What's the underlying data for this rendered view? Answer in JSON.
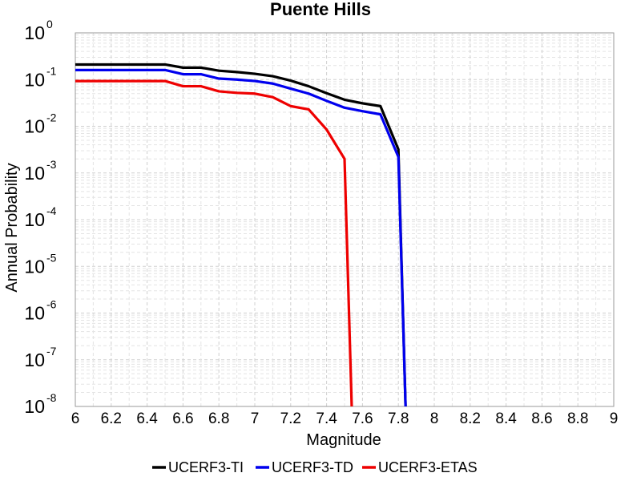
{
  "chart_data": {
    "type": "line",
    "title": "Puente Hills",
    "xlabel": "Magnitude",
    "ylabel": "Annual Probability",
    "xlim": [
      6,
      9
    ],
    "ylim": [
      1e-08,
      1
    ],
    "yscale": "log",
    "grid": true,
    "legend_position": "bottom-center",
    "x_ticks": [
      "6",
      "6.2",
      "6.4",
      "6.6",
      "6.8",
      "7",
      "7.2",
      "7.4",
      "7.6",
      "7.8",
      "8",
      "8.2",
      "8.4",
      "8.6",
      "8.8",
      "9"
    ],
    "y_ticks": [
      {
        "base": "10",
        "exp": "0"
      },
      {
        "base": "10",
        "exp": "-1"
      },
      {
        "base": "10",
        "exp": "-2"
      },
      {
        "base": "10",
        "exp": "-3"
      },
      {
        "base": "10",
        "exp": "-4"
      },
      {
        "base": "10",
        "exp": "-5"
      },
      {
        "base": "10",
        "exp": "-6"
      },
      {
        "base": "10",
        "exp": "-7"
      },
      {
        "base": "10",
        "exp": "-8"
      }
    ],
    "series": [
      {
        "name": "UCERF3-TI",
        "color": "#000000",
        "points": [
          [
            6.0,
            0.21
          ],
          [
            6.1,
            0.21
          ],
          [
            6.2,
            0.21
          ],
          [
            6.3,
            0.21
          ],
          [
            6.4,
            0.21
          ],
          [
            6.5,
            0.21
          ],
          [
            6.6,
            0.18
          ],
          [
            6.7,
            0.18
          ],
          [
            6.8,
            0.155
          ],
          [
            6.9,
            0.145
          ],
          [
            7.0,
            0.133
          ],
          [
            7.1,
            0.118
          ],
          [
            7.2,
            0.095
          ],
          [
            7.3,
            0.072
          ],
          [
            7.4,
            0.051
          ],
          [
            7.5,
            0.037
          ],
          [
            7.6,
            0.031
          ],
          [
            7.7,
            0.027
          ],
          [
            7.8,
            0.0032
          ],
          [
            7.84,
            1e-08
          ]
        ]
      },
      {
        "name": "UCERF3-TD",
        "color": "#0000ee",
        "points": [
          [
            6.0,
            0.16
          ],
          [
            6.1,
            0.16
          ],
          [
            6.2,
            0.16
          ],
          [
            6.3,
            0.16
          ],
          [
            6.4,
            0.16
          ],
          [
            6.5,
            0.16
          ],
          [
            6.6,
            0.13
          ],
          [
            6.7,
            0.13
          ],
          [
            6.8,
            0.105
          ],
          [
            6.9,
            0.1
          ],
          [
            7.0,
            0.093
          ],
          [
            7.1,
            0.082
          ],
          [
            7.2,
            0.064
          ],
          [
            7.3,
            0.05
          ],
          [
            7.4,
            0.035
          ],
          [
            7.5,
            0.025
          ],
          [
            7.6,
            0.021
          ],
          [
            7.7,
            0.018
          ],
          [
            7.8,
            0.0022
          ],
          [
            7.84,
            1e-08
          ]
        ]
      },
      {
        "name": "UCERF3-ETAS",
        "color": "#ee0000",
        "points": [
          [
            6.0,
            0.093
          ],
          [
            6.1,
            0.093
          ],
          [
            6.2,
            0.093
          ],
          [
            6.3,
            0.093
          ],
          [
            6.4,
            0.093
          ],
          [
            6.5,
            0.093
          ],
          [
            6.6,
            0.072
          ],
          [
            6.7,
            0.072
          ],
          [
            6.8,
            0.056
          ],
          [
            6.9,
            0.052
          ],
          [
            7.0,
            0.05
          ],
          [
            7.1,
            0.042
          ],
          [
            7.2,
            0.027
          ],
          [
            7.3,
            0.023
          ],
          [
            7.4,
            0.0085
          ],
          [
            7.5,
            0.002
          ],
          [
            7.54,
            1e-08
          ]
        ]
      }
    ]
  }
}
